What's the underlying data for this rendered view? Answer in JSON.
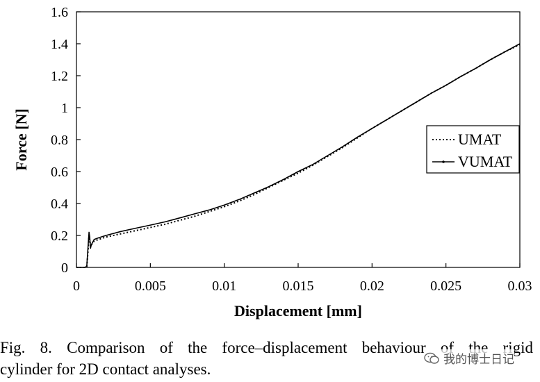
{
  "chart_data": {
    "type": "line",
    "title": "",
    "xlabel": "Displacement [mm]",
    "ylabel": "Force [N]",
    "xlim": [
      0,
      0.03
    ],
    "ylim": [
      0,
      1.6
    ],
    "x_ticks": [
      "0",
      "0.005",
      "0.01",
      "0.015",
      "0.02",
      "0.025",
      "0.03"
    ],
    "x_tick_values": [
      0,
      0.005,
      0.01,
      0.015,
      0.02,
      0.025,
      0.03
    ],
    "y_ticks": [
      "0",
      "0.2",
      "0.4",
      "0.6",
      "0.8",
      "1",
      "1.2",
      "1.4",
      "1.6"
    ],
    "y_tick_values": [
      0,
      0.2,
      0.4,
      0.6,
      0.8,
      1.0,
      1.2,
      1.4,
      1.6
    ],
    "grid": false,
    "legend_position": "middle-right",
    "series": [
      {
        "name": "UMAT",
        "style": "dotted",
        "color": "#000000",
        "x": [
          0,
          0.0006,
          0.0007,
          0.0008,
          0.00085,
          0.0009,
          0.001,
          0.0012,
          0.0015,
          0.002,
          0.003,
          0.004,
          0.005,
          0.006,
          0.007,
          0.008,
          0.009,
          0.01,
          0.011,
          0.012,
          0.013,
          0.014,
          0.015,
          0.016,
          0.017,
          0.018,
          0.019,
          0.02,
          0.021,
          0.022,
          0.023,
          0.024,
          0.025,
          0.026,
          0.027,
          0.028,
          0.029,
          0.03
        ],
        "y": [
          0,
          0,
          0.005,
          0.12,
          0.2,
          0.16,
          0.14,
          0.165,
          0.175,
          0.19,
          0.21,
          0.23,
          0.25,
          0.27,
          0.295,
          0.32,
          0.35,
          0.38,
          0.415,
          0.455,
          0.5,
          0.545,
          0.59,
          0.64,
          0.695,
          0.75,
          0.81,
          0.87,
          0.925,
          0.98,
          1.035,
          1.09,
          1.14,
          1.195,
          1.245,
          1.3,
          1.35,
          1.395
        ]
      },
      {
        "name": "VUMAT",
        "style": "solid",
        "color": "#000000",
        "x": [
          0,
          0.0006,
          0.0007,
          0.0008,
          0.00085,
          0.0009,
          0.00095,
          0.001,
          0.0012,
          0.0015,
          0.002,
          0.003,
          0.004,
          0.005,
          0.006,
          0.007,
          0.008,
          0.009,
          0.01,
          0.011,
          0.012,
          0.013,
          0.014,
          0.015,
          0.016,
          0.017,
          0.018,
          0.019,
          0.02,
          0.021,
          0.022,
          0.023,
          0.024,
          0.025,
          0.026,
          0.027,
          0.028,
          0.029,
          0.03
        ],
        "y": [
          0,
          0,
          0.01,
          0.15,
          0.22,
          0.19,
          0.12,
          0.14,
          0.175,
          0.185,
          0.2,
          0.225,
          0.245,
          0.265,
          0.285,
          0.31,
          0.335,
          0.36,
          0.39,
          0.425,
          0.465,
          0.505,
          0.55,
          0.6,
          0.645,
          0.7,
          0.755,
          0.815,
          0.87,
          0.925,
          0.98,
          1.035,
          1.09,
          1.14,
          1.195,
          1.245,
          1.3,
          1.35,
          1.4
        ]
      }
    ]
  },
  "caption": {
    "line1": "Fig. 8. Comparison of the force–displacement behaviour of the rigid",
    "line2": "cylinder for 2D contact analyses."
  },
  "watermark": {
    "text": "我的博士日记",
    "icon": "wechat-icon"
  }
}
